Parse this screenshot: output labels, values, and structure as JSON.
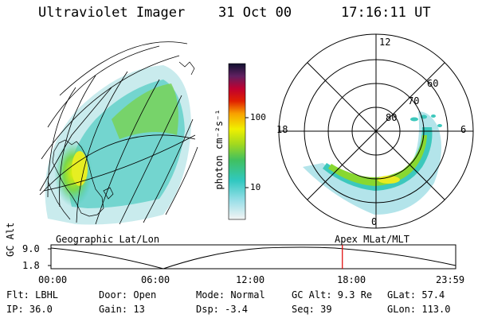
{
  "header": {
    "title": "Ultraviolet Imager",
    "date": "31 Oct 00",
    "time": "17:16:11 UT"
  },
  "colorbar": {
    "unit_label": "photon cm⁻²s⁻¹",
    "ticks": [
      "100",
      "10"
    ]
  },
  "polar_plot": {
    "mlt_labels": {
      "top": "12",
      "left": "18",
      "right": "6",
      "bottom": "0"
    },
    "lat_labels": [
      "60",
      "70",
      "80"
    ]
  },
  "captions": {
    "left": "Geographic Lat/Lon",
    "right": "Apex  MLat/MLT"
  },
  "timeline": {
    "axis_label": "GC Alt",
    "y_ticks": [
      "9.0",
      "1.8"
    ],
    "x_ticks": [
      "00:00",
      "06:00",
      "12:00",
      "18:00",
      "23:59"
    ],
    "marker_time": "17:16",
    "marker_color": "#e00000"
  },
  "info": {
    "flt": "Flt: LBHL",
    "ip": "IP: 36.0",
    "door": "Door: Open",
    "gain": "Gain: 13",
    "mode": "Mode: Normal",
    "dsp": "Dsp:    -3.4",
    "gcalt": "GC Alt: 9.3 Re",
    "seq": "Seq: 39",
    "glat": "GLat:  57.4",
    "glon": "GLon: 113.0"
  }
}
